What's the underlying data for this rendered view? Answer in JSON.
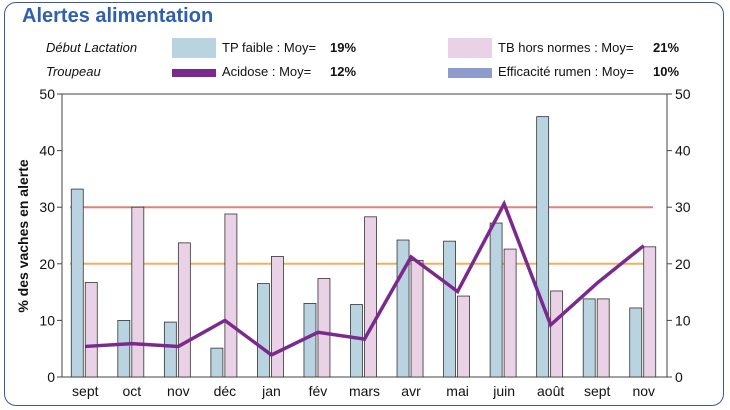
{
  "title": "Alertes alimentation",
  "legend": {
    "group1": "Début Lactation",
    "group2": "Troupeau",
    "items": [
      {
        "label": "TP faible : Moy=",
        "value": "19%",
        "color": "#b9d3e1"
      },
      {
        "label": "TB hors normes : Moy=",
        "value": "21%",
        "color": "#e9d2e5"
      },
      {
        "label": "Acidose : Moy=",
        "value": "12%",
        "color": "#7a2a8c"
      },
      {
        "label": "Efficacité rumen : Moy=",
        "value": "10%",
        "color": "#8e9ccd"
      }
    ]
  },
  "chart_data": {
    "type": "bar",
    "categories": [
      "sept",
      "oct",
      "nov",
      "déc",
      "jan",
      "fév",
      "mars",
      "avr",
      "mai",
      "juin",
      "août",
      "sept",
      "nov"
    ],
    "ylabel": "% des vaches en alerte",
    "ylim": [
      0,
      50
    ],
    "yticks": [
      0,
      10,
      20,
      30,
      40,
      50
    ],
    "series": [
      {
        "name": "TP faible",
        "kind": "bar",
        "color": "#b9d3e1",
        "values": [
          33.2,
          10,
          9.7,
          5.1,
          16.5,
          13,
          12.8,
          24.2,
          24,
          27.2,
          46,
          13.8,
          12.2
        ]
      },
      {
        "name": "TB hors normes",
        "kind": "bar",
        "color": "#e9d2e5",
        "values": [
          16.7,
          30,
          23.7,
          28.8,
          21.3,
          17.4,
          28.3,
          20.6,
          14.3,
          22.6,
          15.2,
          13.8,
          23
        ]
      },
      {
        "name": "Acidose",
        "kind": "line",
        "color": "#7a2a8c",
        "values": [
          5.4,
          5.9,
          5.4,
          10,
          3.9,
          7.9,
          6.7,
          21.2,
          15.1,
          30.6,
          9.2,
          16.6,
          23.2
        ]
      }
    ],
    "reference_lines": [
      {
        "value": 30,
        "color": "#d9857a"
      },
      {
        "value": 20,
        "color": "#f0b060"
      }
    ]
  }
}
